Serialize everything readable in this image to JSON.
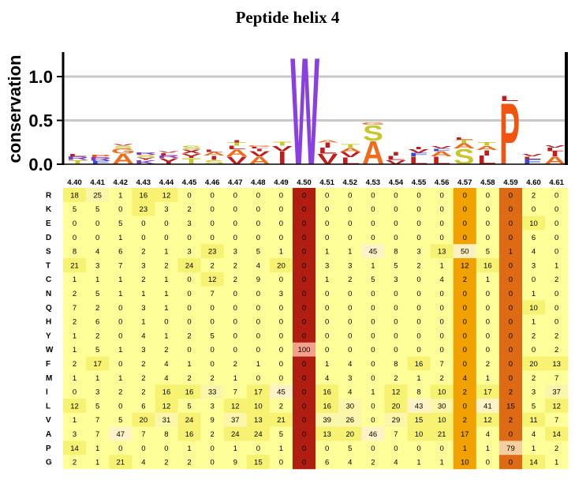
{
  "title": "Peptide helix 4",
  "chart_data": [
    {
      "type": "sequence-logo",
      "ylabel": "conservation",
      "yticks": [
        "0.0",
        "0.5",
        "1.0"
      ],
      "ylim": [
        0,
        1.3
      ],
      "grid": true,
      "positions": [
        "4.40",
        "4.41",
        "4.42",
        "4.43",
        "4.44",
        "4.45",
        "4.46",
        "4.47",
        "4.48",
        "4.49",
        "4.50",
        "4.51",
        "4.52",
        "4.53",
        "4.54",
        "4.55",
        "4.56",
        "4.57",
        "4.58",
        "4.59",
        "4.60",
        "4.61"
      ],
      "stacks": [
        [
          [
            "T",
            0.05
          ],
          [
            "R",
            0.04
          ],
          [
            "L",
            0.03
          ]
        ],
        [
          [
            "F",
            0.04
          ],
          [
            "R",
            0.04
          ],
          [
            "P",
            0.03
          ]
        ],
        [
          [
            "A",
            0.12
          ],
          [
            "G",
            0.06
          ],
          [
            "S",
            0.03
          ],
          [
            "V",
            0.02
          ]
        ],
        [
          [
            "K",
            0.05
          ],
          [
            "Y",
            0.03
          ],
          [
            "S",
            0.03
          ],
          [
            "R",
            0.03
          ]
        ],
        [
          [
            "Y",
            0.07
          ],
          [
            "R",
            0.03
          ],
          [
            "L",
            0.03
          ],
          [
            "V",
            0.02
          ]
        ],
        [
          [
            "T",
            0.07
          ],
          [
            "Y",
            0.05
          ],
          [
            "X",
            0.05
          ],
          [
            "S",
            0.04
          ]
        ],
        [
          [
            "S",
            0.05
          ],
          [
            "I",
            0.05
          ],
          [
            "A",
            0.04
          ],
          [
            "L",
            0.03
          ]
        ],
        [
          [
            "V",
            0.09
          ],
          [
            "A",
            0.08
          ],
          [
            "L",
            0.04
          ],
          [
            "T",
            0.04
          ],
          [
            "I",
            0.03
          ]
        ],
        [
          [
            "A",
            0.09
          ],
          [
            "V",
            0.06
          ],
          [
            "I",
            0.03
          ],
          [
            "L",
            0.02
          ],
          [
            "G",
            0.02
          ]
        ],
        [
          [
            "I",
            0.15
          ],
          [
            "V",
            0.06
          ],
          [
            "T",
            0.05
          ]
        ],
        [
          [
            "W",
            1.26
          ]
        ],
        [
          [
            "V",
            0.12
          ],
          [
            "L",
            0.07
          ],
          [
            "I",
            0.06
          ],
          [
            "A",
            0.03
          ]
        ],
        [
          [
            "L",
            0.08
          ],
          [
            "V",
            0.06
          ],
          [
            "A",
            0.05
          ],
          [
            "T",
            0.04
          ]
        ],
        [
          [
            "A",
            0.27
          ],
          [
            "S",
            0.18
          ],
          [
            "G",
            0.03
          ]
        ],
        [
          [
            "V",
            0.05
          ],
          [
            "L",
            0.05
          ],
          [
            "I",
            0.04
          ]
        ],
        [
          [
            "L",
            0.09
          ],
          [
            "F",
            0.04
          ],
          [
            "V",
            0.04
          ],
          [
            "I",
            0.03
          ]
        ],
        [
          [
            "L",
            0.09
          ],
          [
            "A",
            0.06
          ],
          [
            "F",
            0.03
          ],
          [
            "V",
            0.03
          ]
        ],
        [
          [
            "S",
            0.18
          ],
          [
            "A",
            0.06
          ],
          [
            "T",
            0.04
          ],
          [
            "L",
            0.03
          ]
        ],
        [
          [
            "L",
            0.1
          ],
          [
            "I",
            0.06
          ],
          [
            "A",
            0.05
          ],
          [
            "T",
            0.04
          ]
        ],
        [
          [
            "P",
            0.72
          ],
          [
            "L",
            0.06
          ]
        ],
        [
          [
            "F",
            0.06
          ],
          [
            "L",
            0.03
          ],
          [
            "V",
            0.03
          ]
        ],
        [
          [
            "A",
            0.09
          ],
          [
            "I",
            0.06
          ],
          [
            "L",
            0.04
          ],
          [
            "V",
            0.03
          ]
        ]
      ]
    },
    {
      "type": "heatmap",
      "x": [
        "4.40",
        "4.41",
        "4.42",
        "4.43",
        "4.44",
        "4.45",
        "4.46",
        "4.47",
        "4.48",
        "4.49",
        "4.50",
        "4.51",
        "4.52",
        "4.53",
        "4.54",
        "4.55",
        "4.56",
        "4.57",
        "4.58",
        "4.59",
        "4.60",
        "4.61"
      ],
      "y": [
        "R",
        "K",
        "E",
        "D",
        "S",
        "T",
        "C",
        "N",
        "Q",
        "H",
        "Y",
        "W",
        "F",
        "M",
        "I",
        "L",
        "V",
        "A",
        "P",
        "G"
      ],
      "values": [
        [
          18,
          25,
          1,
          16,
          12,
          0,
          0,
          0,
          0,
          0,
          0,
          0,
          0,
          0,
          0,
          0,
          0,
          0,
          0,
          0,
          2,
          0
        ],
        [
          5,
          5,
          0,
          23,
          3,
          2,
          0,
          0,
          0,
          0,
          0,
          0,
          0,
          0,
          0,
          0,
          0,
          0,
          0,
          0,
          0,
          0
        ],
        [
          0,
          0,
          5,
          0,
          0,
          3,
          0,
          0,
          0,
          0,
          0,
          0,
          0,
          0,
          0,
          0,
          0,
          0,
          0,
          0,
          10,
          0
        ],
        [
          0,
          0,
          1,
          0,
          0,
          0,
          0,
          0,
          0,
          0,
          0,
          0,
          0,
          0,
          0,
          0,
          0,
          0,
          0,
          0,
          6,
          0
        ],
        [
          8,
          4,
          6,
          2,
          1,
          3,
          23,
          3,
          5,
          1,
          0,
          1,
          1,
          45,
          8,
          3,
          13,
          50,
          5,
          1,
          4,
          0
        ],
        [
          21,
          3,
          7,
          3,
          2,
          24,
          2,
          2,
          4,
          20,
          0,
          3,
          3,
          1,
          5,
          2,
          1,
          12,
          16,
          0,
          3,
          1
        ],
        [
          1,
          1,
          1,
          2,
          1,
          0,
          12,
          2,
          9,
          0,
          0,
          1,
          2,
          5,
          3,
          0,
          4,
          2,
          1,
          0,
          0,
          2
        ],
        [
          2,
          5,
          1,
          1,
          1,
          0,
          7,
          0,
          0,
          3,
          0,
          0,
          0,
          0,
          0,
          0,
          0,
          0,
          0,
          0,
          1,
          0
        ],
        [
          7,
          2,
          0,
          3,
          1,
          0,
          0,
          0,
          0,
          0,
          0,
          0,
          0,
          0,
          0,
          0,
          0,
          0,
          0,
          0,
          10,
          0
        ],
        [
          2,
          6,
          0,
          1,
          0,
          0,
          0,
          0,
          0,
          0,
          0,
          0,
          0,
          0,
          0,
          0,
          0,
          0,
          0,
          0,
          1,
          0
        ],
        [
          1,
          2,
          0,
          4,
          1,
          2,
          5,
          0,
          0,
          0,
          0,
          0,
          0,
          0,
          0,
          0,
          0,
          0,
          0,
          0,
          2,
          2
        ],
        [
          1,
          5,
          1,
          3,
          2,
          0,
          0,
          0,
          0,
          0,
          100,
          0,
          0,
          0,
          0,
          0,
          0,
          0,
          0,
          0,
          0,
          2
        ],
        [
          2,
          17,
          0,
          2,
          4,
          1,
          0,
          2,
          1,
          0,
          0,
          1,
          4,
          0,
          8,
          16,
          7,
          0,
          2,
          0,
          20,
          13
        ],
        [
          1,
          1,
          1,
          2,
          4,
          2,
          2,
          1,
          0,
          0,
          0,
          4,
          3,
          0,
          2,
          1,
          2,
          4,
          1,
          0,
          2,
          7
        ],
        [
          0,
          3,
          2,
          2,
          16,
          16,
          33,
          7,
          17,
          45,
          0,
          16,
          4,
          1,
          12,
          8,
          10,
          2,
          17,
          2,
          3,
          37
        ],
        [
          12,
          5,
          0,
          6,
          12,
          5,
          3,
          12,
          10,
          2,
          0,
          16,
          30,
          0,
          20,
          43,
          30,
          0,
          41,
          15,
          5,
          12
        ],
        [
          1,
          7,
          5,
          20,
          31,
          24,
          9,
          37,
          13,
          21,
          0,
          39,
          26,
          0,
          29,
          15,
          10,
          2,
          12,
          2,
          11,
          7
        ],
        [
          3,
          7,
          47,
          7,
          8,
          16,
          2,
          24,
          24,
          5,
          0,
          13,
          20,
          46,
          7,
          10,
          21,
          17,
          4,
          0,
          4,
          14
        ],
        [
          14,
          1,
          0,
          0,
          0,
          1,
          0,
          1,
          0,
          1,
          0,
          0,
          5,
          0,
          0,
          0,
          0,
          1,
          1,
          79,
          1,
          2
        ],
        [
          2,
          1,
          21,
          4,
          2,
          2,
          0,
          9,
          15,
          0,
          0,
          6,
          4,
          2,
          4,
          1,
          1,
          10,
          0,
          0,
          14,
          1
        ]
      ],
      "column_highlights": {
        "4.50": "#b01e12",
        "4.57": "#f2a200",
        "4.59": "#de6a16"
      },
      "colors": {
        "low": "#ffff99",
        "mid": "#f7f272",
        "hot": "#f5c98c",
        "peak": "#f5a07a"
      }
    }
  ]
}
